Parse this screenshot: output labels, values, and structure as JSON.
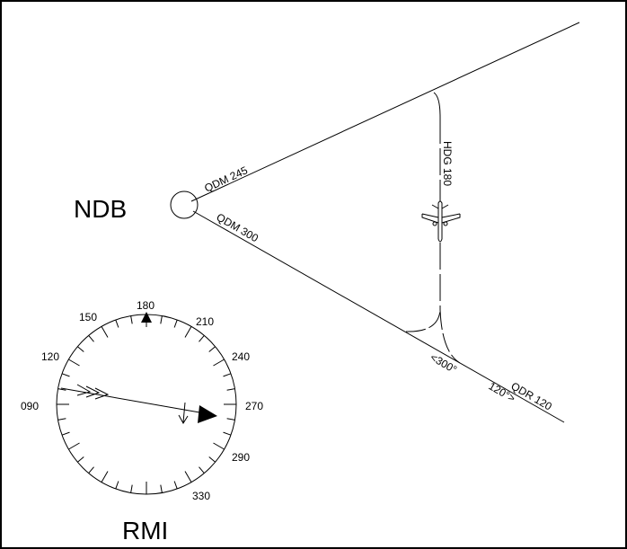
{
  "diagram": {
    "ndb_label": "NDB",
    "rmi_label": "RMI",
    "track_labels": [
      "QDM 245",
      "QDM 300",
      "HDG 180",
      "<300°",
      "120°>",
      "QDR 120"
    ],
    "rmi_scale": [
      "180",
      "150",
      "210",
      "120",
      "240",
      "090",
      "270",
      "290",
      "330"
    ]
  }
}
